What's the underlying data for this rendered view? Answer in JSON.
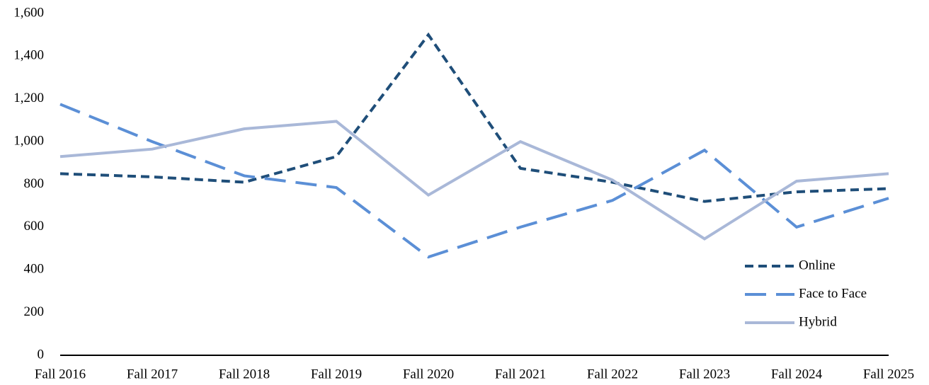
{
  "chart_data": {
    "type": "line",
    "categories": [
      "Fall 2016",
      "Fall 2017",
      "Fall 2018",
      "Fall 2019",
      "Fall 2020",
      "Fall 2021",
      "Fall 2022",
      "Fall 2023",
      "Fall 2024",
      "Fall 2025"
    ],
    "series": [
      {
        "name": "Online",
        "color": "#1f4e79",
        "dash": "short",
        "values": [
          850,
          835,
          810,
          930,
          1500,
          875,
          810,
          720,
          765,
          780
        ]
      },
      {
        "name": "Face to Face",
        "color": "#5b8fd6",
        "dash": "long",
        "values": [
          1175,
          1000,
          840,
          785,
          460,
          600,
          725,
          960,
          600,
          735
        ]
      },
      {
        "name": "Hybrid",
        "color": "#a9b8d8",
        "dash": "solid",
        "values": [
          930,
          965,
          1060,
          1095,
          750,
          1000,
          820,
          545,
          815,
          850
        ]
      }
    ],
    "ylim": [
      0,
      1600
    ],
    "yticks": [
      0,
      {
        "value": 200,
        "label": "200"
      },
      400,
      600,
      800,
      {
        "value": 1000,
        "label": "1,000"
      },
      {
        "value": 1200,
        "label": "1,200"
      },
      {
        "value": 1400,
        "label": "1,400"
      },
      {
        "value": 1600,
        "label": "1,600"
      }
    ],
    "grid": false,
    "legend": "lower right"
  }
}
